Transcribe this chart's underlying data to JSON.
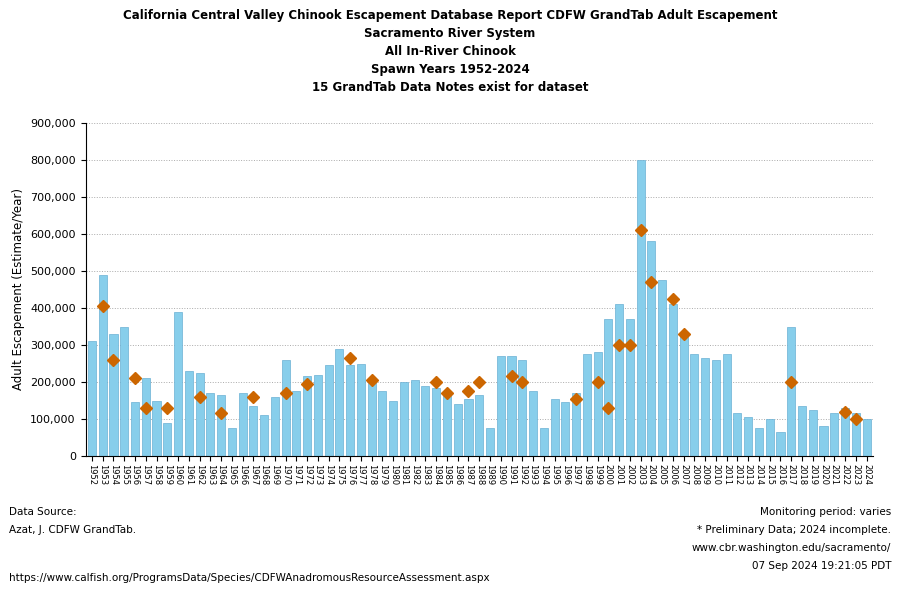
{
  "title_line1": "California Central Valley Chinook Escapement Database Report CDFW GrandTab Adult Escapement",
  "title_line2": "Sacramento River System",
  "title_line3": "All In-River Chinook",
  "title_line4": "Spawn Years 1952-2024",
  "title_line5": "15 GrandTab Data Notes exist for dataset",
  "ylabel": "Adult Escapement (Estimate/Year)",
  "bar_color": "#87CEEB",
  "bar_edgecolor": "#6ab0d4",
  "diamond_color": "#CC6600",
  "years": [
    1952,
    1953,
    1954,
    1955,
    1956,
    1957,
    1958,
    1959,
    1960,
    1961,
    1962,
    1963,
    1964,
    1965,
    1966,
    1967,
    1968,
    1969,
    1970,
    1971,
    1972,
    1973,
    1974,
    1975,
    1976,
    1977,
    1978,
    1979,
    1980,
    1981,
    1982,
    1983,
    1984,
    1985,
    1986,
    1987,
    1988,
    1989,
    1990,
    1991,
    1992,
    1993,
    1994,
    1995,
    1996,
    1997,
    1998,
    1999,
    2000,
    2001,
    2002,
    2003,
    2004,
    2005,
    2006,
    2007,
    2008,
    2009,
    2010,
    2011,
    2012,
    2013,
    2014,
    2015,
    2016,
    2017,
    2018,
    2019,
    2020,
    2021,
    2022,
    2023,
    2024
  ],
  "bar_values": [
    310000,
    490000,
    330000,
    350000,
    145000,
    210000,
    150000,
    90000,
    390000,
    230000,
    225000,
    170000,
    165000,
    75000,
    170000,
    135000,
    110000,
    160000,
    260000,
    175000,
    215000,
    220000,
    245000,
    290000,
    245000,
    250000,
    200000,
    175000,
    150000,
    200000,
    205000,
    190000,
    185000,
    165000,
    140000,
    155000,
    165000,
    75000,
    270000,
    270000,
    260000,
    175000,
    75000,
    155000,
    145000,
    170000,
    275000,
    280000,
    370000,
    410000,
    370000,
    800000,
    580000,
    475000,
    410000,
    330000,
    275000,
    265000,
    260000,
    275000,
    115000,
    105000,
    75000,
    100000,
    65000,
    350000,
    135000,
    125000,
    80000,
    115000,
    130000,
    115000,
    100000
  ],
  "diamond_values": [
    null,
    405000,
    260000,
    null,
    210000,
    130000,
    null,
    130000,
    null,
    null,
    160000,
    null,
    115000,
    null,
    null,
    160000,
    null,
    null,
    170000,
    null,
    195000,
    null,
    null,
    null,
    265000,
    null,
    205000,
    null,
    null,
    null,
    null,
    null,
    200000,
    170000,
    null,
    175000,
    200000,
    null,
    null,
    215000,
    200000,
    null,
    null,
    null,
    null,
    155000,
    null,
    200000,
    130000,
    300000,
    300000,
    610000,
    470000,
    null,
    425000,
    330000,
    null,
    null,
    null,
    null,
    null,
    null,
    null,
    null,
    null,
    200000,
    null,
    null,
    null,
    null,
    120000,
    100000,
    null
  ],
  "ylim": [
    0,
    900000
  ],
  "yticks": [
    0,
    100000,
    200000,
    300000,
    400000,
    500000,
    600000,
    700000,
    800000,
    900000
  ],
  "footnote_left_1": "Data Source:",
  "footnote_left_2": "Azat, J. CDFW GrandTab.",
  "footnote_left_3": "https://www.calfish.org/ProgramsData/Species/CDFWAnadromousResourceAssessment.aspx",
  "footnote_right_1": "Monitoring period: varies",
  "footnote_right_2": "* Preliminary Data; 2024 incomplete.",
  "footnote_right_3": "www.cbr.washington.edu/sacramento/",
  "footnote_right_4": "07 Sep 2024 19:21:05 PDT",
  "background_color": "#ffffff",
  "plot_bg_color": "#ffffff",
  "grid_color": "#aaaaaa"
}
